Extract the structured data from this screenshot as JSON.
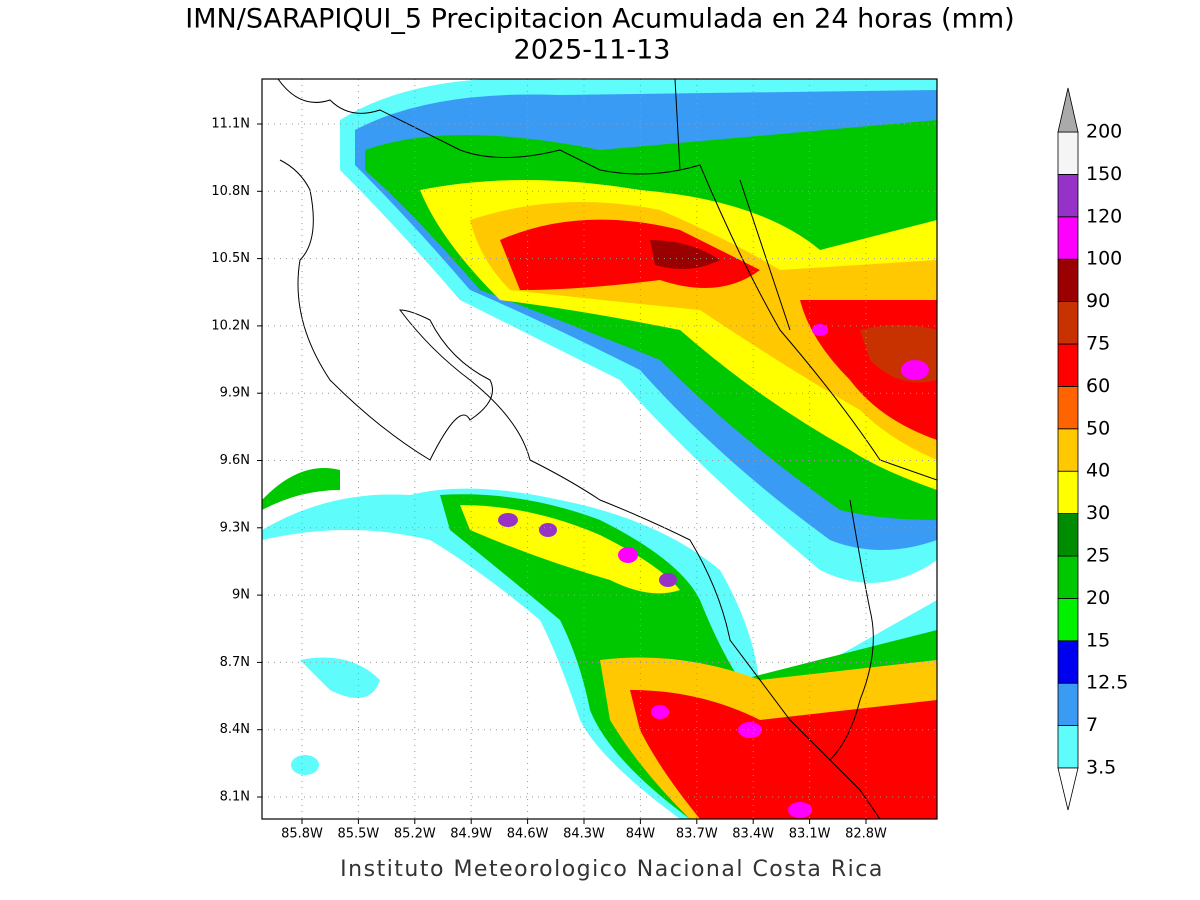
{
  "title": "IMN/SARAPIQUI_5 Precipitacion Acumulada en 24 horas (mm)",
  "date": "2025-11-13",
  "lon_ticks": [
    "85.8W",
    "85.5W",
    "85.2W",
    "84.9W",
    "84.6W",
    "84.3W",
    "84W",
    "83.7W",
    "83.4W",
    "83.1W",
    "82.8W"
  ],
  "lat_ticks": [
    "11.1N",
    "10.8N",
    "10.5N",
    "10.2N",
    "9.9N",
    "9.6N",
    "9.3N",
    "9N",
    "8.7N",
    "8.4N",
    "8.1N"
  ],
  "colorbar": {
    "levels": [
      "3.5",
      "7",
      "12.5",
      "15",
      "20",
      "25",
      "30",
      "40",
      "50",
      "60",
      "75",
      "90",
      "100",
      "120",
      "150",
      "200"
    ],
    "colors": [
      "#5ffcfc",
      "#3a9bf5",
      "#0000f0",
      "#00f000",
      "#00c800",
      "#008c00",
      "#ffff00",
      "#ffc800",
      "#ff6400",
      "#ff0000",
      "#c83200",
      "#9b0000",
      "#ff00ff",
      "#9632c8",
      "#f5f5f5"
    ],
    "under_color": "#ffffff",
    "over_color": "#aaaaaa"
  },
  "footer": "Instituto Meteorologico Nacional Costa Rica"
}
